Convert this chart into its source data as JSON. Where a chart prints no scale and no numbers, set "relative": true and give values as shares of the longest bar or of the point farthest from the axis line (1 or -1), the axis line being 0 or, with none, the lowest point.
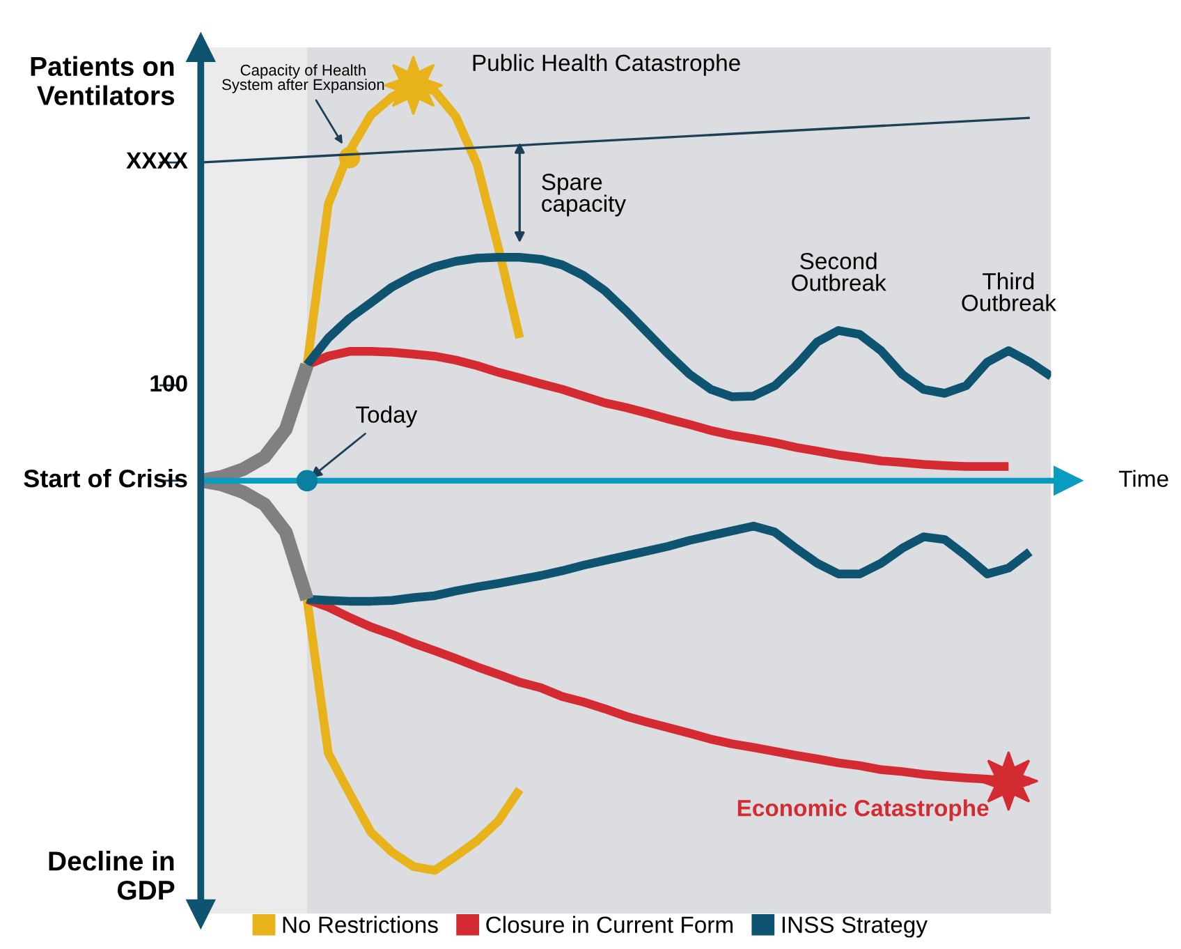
{
  "chart_data": {
    "type": "line",
    "relative": true,
    "ylabel": "Patients on Ventilators",
    "xlabel": "Time",
    "categories": [
      null,
      null,
      null,
      null,
      null,
      null,
      null,
      null,
      null,
      null,
      null,
      null,
      null,
      null,
      null,
      null,
      null,
      null,
      null,
      null,
      null,
      null,
      null,
      null,
      null,
      null,
      null,
      null,
      null,
      null,
      null,
      null,
      null,
      null,
      null,
      null,
      null,
      null,
      null,
      null,
      null
    ],
    "legend": "bottom",
    "ref_lines": [
      {
        "axis": "y",
        "value": 0,
        "label": "Start of Crisis",
        "color": "#0a9cbf"
      }
    ],
    "series": [
      {
        "name": "No Restrictions",
        "color": "#e8b21a",
        "values": [
          null,
          null,
          null,
          null,
          null,
          0.293,
          0.7,
          0.834,
          0.925,
          0.971,
          1,
          0.986,
          0.921,
          0.8,
          0.589,
          0.361,
          null,
          null,
          null,
          null,
          null,
          null,
          null,
          null,
          null,
          null,
          null,
          null,
          null,
          null,
          null,
          null,
          null,
          null,
          null,
          null,
          null,
          null,
          null,
          null,
          null
        ]
      },
      {
        "color": "#e8b21a",
        "values": [
          null,
          null,
          null,
          null,
          null,
          -0.3,
          -0.69,
          -0.791,
          -0.889,
          -0.94,
          -0.976,
          -0.986,
          -0.95,
          -0.911,
          -0.861,
          -0.781,
          null,
          null,
          null,
          null,
          null,
          null,
          null,
          null,
          null,
          null,
          null,
          null,
          null,
          null,
          null,
          null,
          null,
          null,
          null,
          null,
          null,
          null,
          null,
          null,
          null
        ]
      },
      {
        "name": "Closure in Current Form",
        "color": "#d42a32",
        "values": [
          null,
          null,
          null,
          null,
          null,
          0.293,
          0.315,
          0.327,
          0.327,
          0.325,
          0.32,
          0.315,
          0.305,
          0.291,
          0.274,
          0.26,
          0.245,
          0.231,
          0.214,
          0.197,
          0.185,
          0.171,
          0.156,
          0.142,
          0.127,
          0.115,
          0.106,
          0.096,
          0.084,
          0.075,
          0.065,
          0.058,
          0.05,
          0.046,
          0.041,
          0.038,
          0.036,
          0.036,
          0.036,
          null,
          null
        ]
      },
      {
        "color": "#d42a32",
        "values": [
          null,
          null,
          null,
          null,
          null,
          -0.3,
          -0.32,
          -0.346,
          -0.37,
          -0.389,
          -0.411,
          -0.43,
          -0.45,
          -0.471,
          -0.49,
          -0.51,
          -0.524,
          -0.546,
          -0.56,
          -0.577,
          -0.596,
          -0.611,
          -0.625,
          -0.639,
          -0.654,
          -0.666,
          -0.675,
          -0.685,
          -0.695,
          -0.704,
          -0.714,
          -0.721,
          -0.731,
          -0.736,
          -0.743,
          -0.748,
          -0.752,
          -0.755,
          -0.76,
          -0.76,
          null
        ]
      },
      {
        "name": "INSS Strategy",
        "color": "#0e5470",
        "values": [
          null,
          null,
          null,
          null,
          null,
          0.293,
          0.361,
          0.411,
          0.45,
          0.49,
          0.519,
          0.541,
          0.555,
          0.563,
          0.565,
          0.565,
          0.56,
          0.546,
          0.519,
          0.481,
          0.43,
          0.375,
          0.32,
          0.269,
          0.231,
          0.212,
          0.214,
          0.24,
          0.291,
          0.351,
          0.38,
          0.37,
          0.329,
          0.269,
          0.231,
          0.221,
          0.24,
          0.3,
          0.329,
          0.3,
          0.264
        ]
      },
      {
        "color": "#0e5470",
        "values": [
          null,
          null,
          null,
          null,
          null,
          -0.3,
          -0.303,
          -0.305,
          -0.305,
          -0.303,
          -0.296,
          -0.291,
          -0.279,
          -0.269,
          -0.26,
          -0.25,
          -0.24,
          -0.228,
          -0.214,
          -0.202,
          -0.19,
          -0.178,
          -0.166,
          -0.151,
          -0.139,
          -0.127,
          -0.115,
          -0.13,
          -0.171,
          -0.209,
          -0.236,
          -0.236,
          -0.209,
          -0.171,
          -0.142,
          -0.149,
          -0.19,
          -0.236,
          -0.221,
          -0.18,
          null
        ]
      },
      {
        "color": "#808080",
        "values": [
          0,
          0.01,
          0.029,
          0.06,
          0.13,
          0.293,
          null,
          null,
          null,
          null,
          null,
          null,
          null,
          null,
          null,
          null,
          null,
          null,
          null,
          null,
          null,
          null,
          null,
          null,
          null,
          null,
          null,
          null,
          null,
          null,
          null,
          null,
          null,
          null,
          null,
          null,
          null,
          null,
          null,
          null,
          null
        ]
      },
      {
        "color": "#808080",
        "values": [
          0,
          -0.01,
          -0.029,
          -0.06,
          -0.13,
          -0.3,
          null,
          null,
          null,
          null,
          null,
          null,
          null,
          null,
          null,
          null,
          null,
          null,
          null,
          null,
          null,
          null,
          null,
          null,
          null,
          null,
          null,
          null,
          null,
          null,
          null,
          null,
          null,
          null,
          null,
          null,
          null,
          null,
          null,
          null,
          null
        ]
      },
      {
        "color": "#1d3f57",
        "values": [
          0.805,
          null,
          null,
          null,
          null,
          null,
          null,
          null,
          null,
          null,
          null,
          null,
          null,
          null,
          null,
          null,
          null,
          null,
          null,
          null,
          null,
          null,
          null,
          null,
          null,
          null,
          null,
          null,
          null,
          null,
          null,
          null,
          null,
          null,
          null,
          null,
          null,
          null,
          null,
          0.918,
          null
        ]
      }
    ],
    "annotations": [
      "Today",
      "Capacity of Health\nSystem after Expansion",
      "Public Health Catastrophe",
      "Spare\ncapacity",
      "Second\nOutbreak",
      "Third\nOutbreak",
      "Economic Catastrophe",
      "Decline in GDP",
      "100",
      "XXXX"
    ]
  }
}
